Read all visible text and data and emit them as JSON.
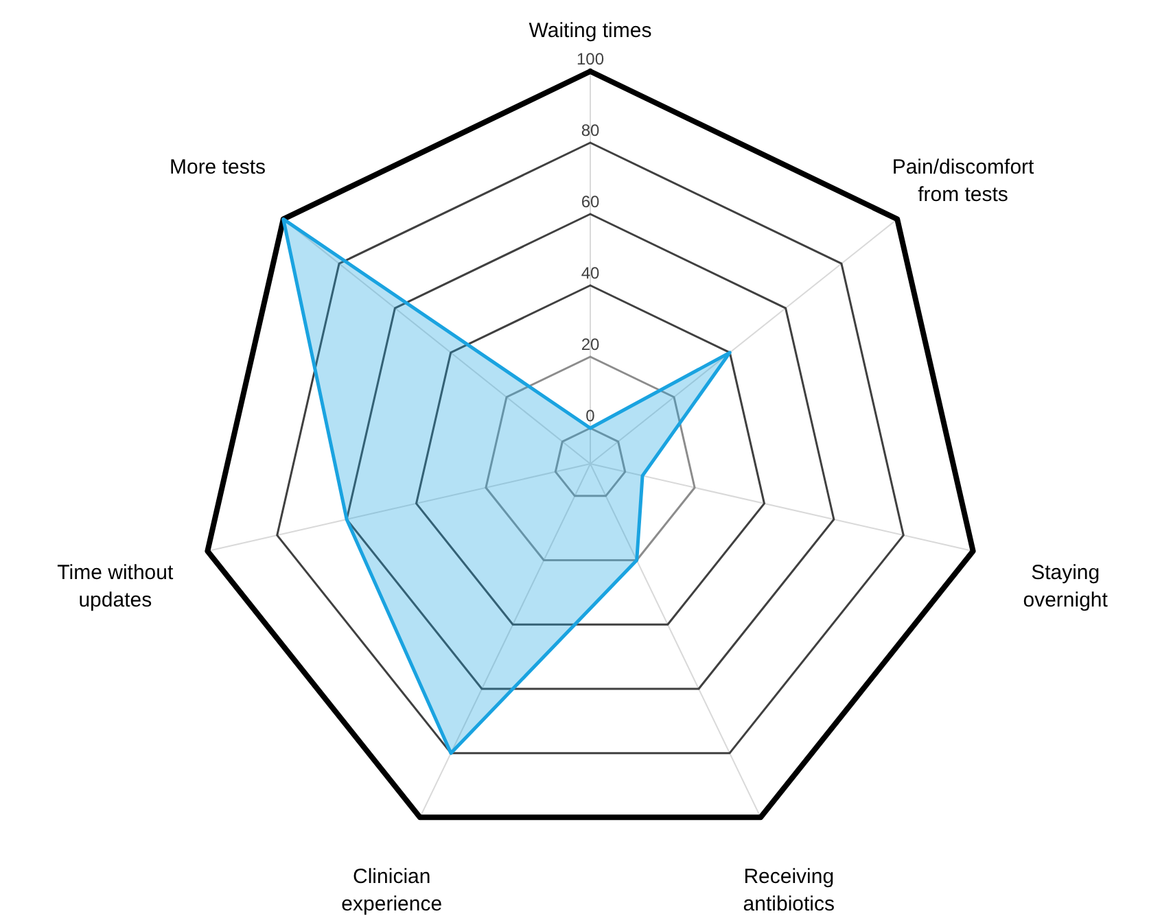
{
  "chart_data": {
    "type": "radar",
    "categories": [
      "Waiting times",
      "Pain/discomfort from tests",
      "Staying overnight",
      "Receiving antibiotics",
      "Clinician experience",
      "Time without updates",
      "More tests"
    ],
    "series": [
      {
        "color": "#1aa3e0",
        "values": [
          0,
          40,
          5,
          20,
          80,
          60,
          100
        ]
      }
    ],
    "ylim": [
      -10,
      100
    ],
    "yticks": [
      0,
      20,
      40,
      60,
      80,
      100
    ],
    "grid": true
  }
}
